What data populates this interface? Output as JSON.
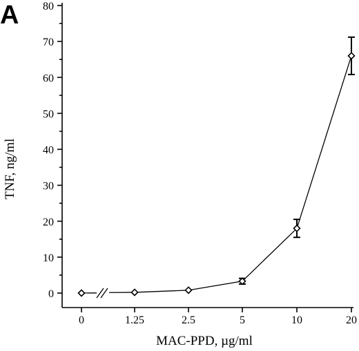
{
  "panel_label": "A",
  "chart_data": {
    "type": "line",
    "title": "",
    "xlabel": "MAC-PPD, µg/ml",
    "ylabel": "TNF, ng/ml",
    "x_scale": "categorical (axis break between 0 and 1.25)",
    "categories": [
      "0",
      "1.25",
      "2.5",
      "5",
      "10",
      "20"
    ],
    "values": [
      0,
      0.2,
      0.8,
      3.3,
      18,
      66
    ],
    "error": [
      0,
      0,
      0,
      0.8,
      2.5,
      5.2
    ],
    "ylim": [
      0,
      80
    ],
    "yticks": [
      "0",
      "10",
      "20",
      "30",
      "40",
      "50",
      "60",
      "70",
      "80"
    ],
    "grid": false,
    "legend": "none",
    "marker": "open-diamond"
  }
}
